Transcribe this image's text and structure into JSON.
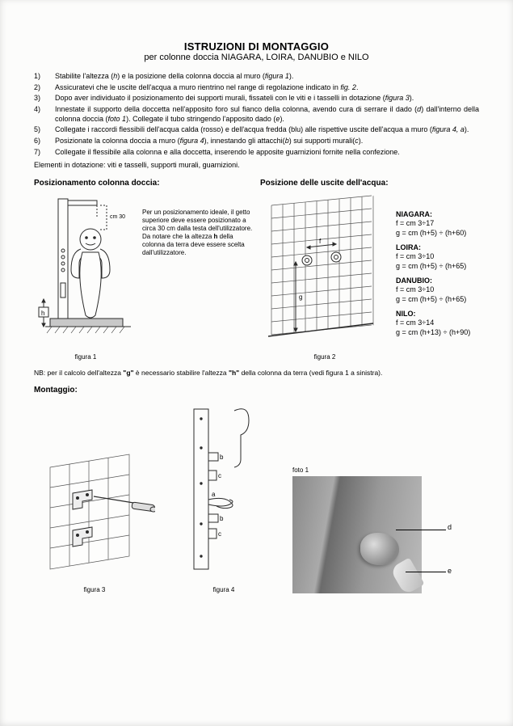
{
  "title": "ISTRUZIONI DI MONTAGGIO",
  "subtitle": "per colonne doccia NIAGARA, LOIRA, DANUBIO e NILO",
  "steps": [
    {
      "n": "1)",
      "t": "Stabilite l'altezza (<i>h</i>) e la posizione della colonna doccia al muro (<i>figura 1</i>)."
    },
    {
      "n": "2)",
      "t": "Assicuratevi che le uscite dell'acqua a muro rientrino nel range di regolazione indicato in <i>fig. 2</i>."
    },
    {
      "n": "3)",
      "t": "Dopo aver individuato il posizionamento dei supporti murali, fissateli con le viti e i tasselli in dotazione (<i>figura 3</i>)."
    },
    {
      "n": "4)",
      "t": "Innestate il supporto della doccetta nell'apposito foro sul fianco della colonna, avendo cura di serrare il dado (<i>d</i>) dall'interno della colonna doccia (<i>foto 1</i>). Collegate il tubo stringendo l'apposito dado (<i>e</i>)."
    },
    {
      "n": "5)",
      "t": "Collegate i raccordi flessibili dell'acqua calda (rosso) e dell'acqua fredda (blu) alle rispettive uscite dell'acqua a muro (<i>figura 4, a</i>)."
    },
    {
      "n": "6)",
      "t": "Posizionate la colonna doccia a muro (<i>figura 4</i>), innestando gli attacchi(<i>b</i>) sui supporti murali(<i>c</i>)."
    },
    {
      "n": "7)",
      "t": "Collegate il flessibile alla colonna e alla doccetta, inserendo le apposite guarnizioni fornite nella confezione."
    }
  ],
  "dotazione": "Elementi in dotazione: viti e tasselli, supporti murali, guarnizioni.",
  "heading_left": "Posizionamento colonna doccia:",
  "heading_right": "Posizione delle uscite dell'acqua:",
  "fig1_cm30": "cm 30",
  "fig1_text": "Per un posizionamento ideale, il getto superiore deve essere posizionato a circa 30 cm dalla testa dell'utilizzatore. Da notare che la altezza <b>h</b> della colonna da terra deve essere scelta dall'utilizzatore.",
  "fig1_cap": "figura 1",
  "fig2_cap": "figura 2",
  "specs": [
    {
      "model": "NIAGARA:",
      "f": "f = cm 3÷17",
      "g": "g = cm (h+5) ÷ (h+60)"
    },
    {
      "model": "LOIRA:",
      "f": "f = cm 3÷10",
      "g": "g = cm (h+5) ÷ (h+65)"
    },
    {
      "model": "DANUBIO:",
      "f": "f = cm 3÷10",
      "g": "g = cm (h+5) ÷ (h+65)"
    },
    {
      "model": "NILO:",
      "f": "f = cm 3÷14",
      "g": "g = cm (h+13) ÷ (h+90)"
    }
  ],
  "nb": "NB: per il calcolo dell'altezza <b>\"g\"</b> è necessario stabilire l'altezza <b>\"h\"</b> della colonna da terra (vedi figura 1 a sinistra).",
  "montaggio": "Montaggio:",
  "fig3_cap": "figura 3",
  "fig4_cap": "figura 4",
  "foto1_label": "foto 1",
  "label_d": "d",
  "label_e": "e",
  "label_a": "a",
  "label_b": "b",
  "label_c": "c",
  "label_h": "h",
  "label_f": "f",
  "label_g": "g",
  "colors": {
    "stroke": "#2a2a2a",
    "fill_light": "#fdfdfc",
    "grid": "#555"
  }
}
